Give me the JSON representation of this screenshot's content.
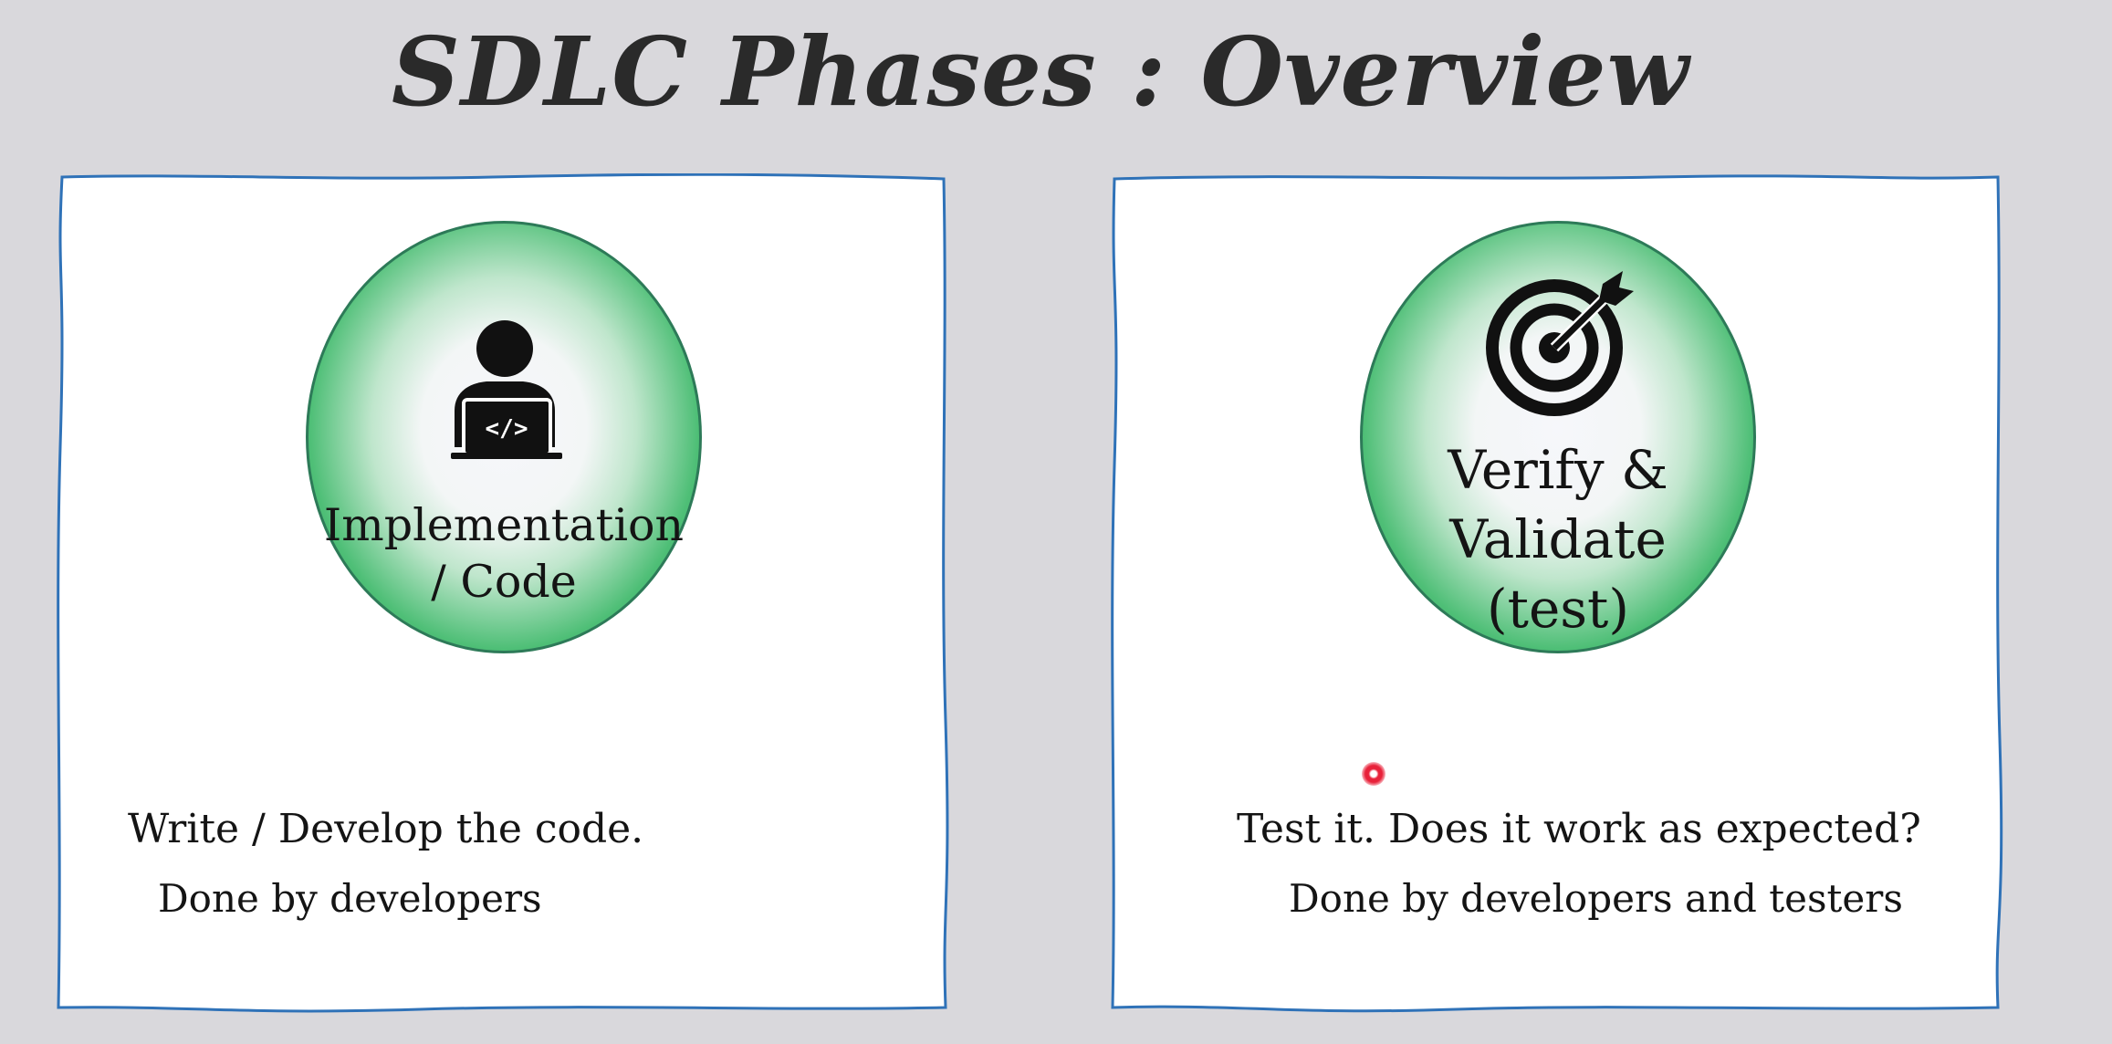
{
  "title": "SDLC Phases : Overview",
  "phases": [
    {
      "label_line1": "Implementation",
      "label_line2": "/ Code",
      "icon": "developer-laptop-icon",
      "description": "Write / Develop the code.",
      "done_by": "Done by developers"
    },
    {
      "label_line1": "Verify &",
      "label_line2": "Validate",
      "label_line3": "(test)",
      "icon": "target-icon",
      "description": "Test it. Does it work as expected?",
      "done_by": "Done by developers and testers"
    }
  ],
  "colors": {
    "background": "#d9d8dc",
    "card_border": "#2f72b8",
    "circle_green": "#27a254",
    "circle_center": "#f6f7fb",
    "pointer_red": "#e8223a"
  }
}
